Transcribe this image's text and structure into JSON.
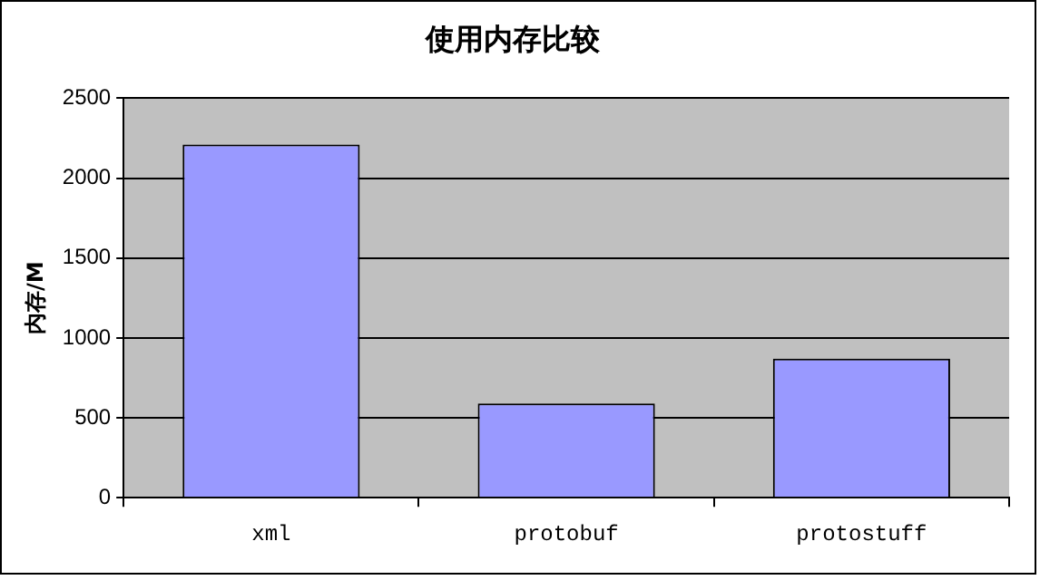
{
  "chart_data": {
    "type": "bar",
    "title": "使用内存比较",
    "ylabel": "内存/M",
    "categories": [
      "xml",
      "protobuf",
      "protostuff"
    ],
    "values": [
      2210,
      590,
      870
    ],
    "color": "#9999ff",
    "ylim": [
      0,
      2500
    ],
    "yticks": [
      0,
      500,
      1000,
      1500,
      2000,
      2500
    ],
    "grid": "y",
    "legend": false
  }
}
